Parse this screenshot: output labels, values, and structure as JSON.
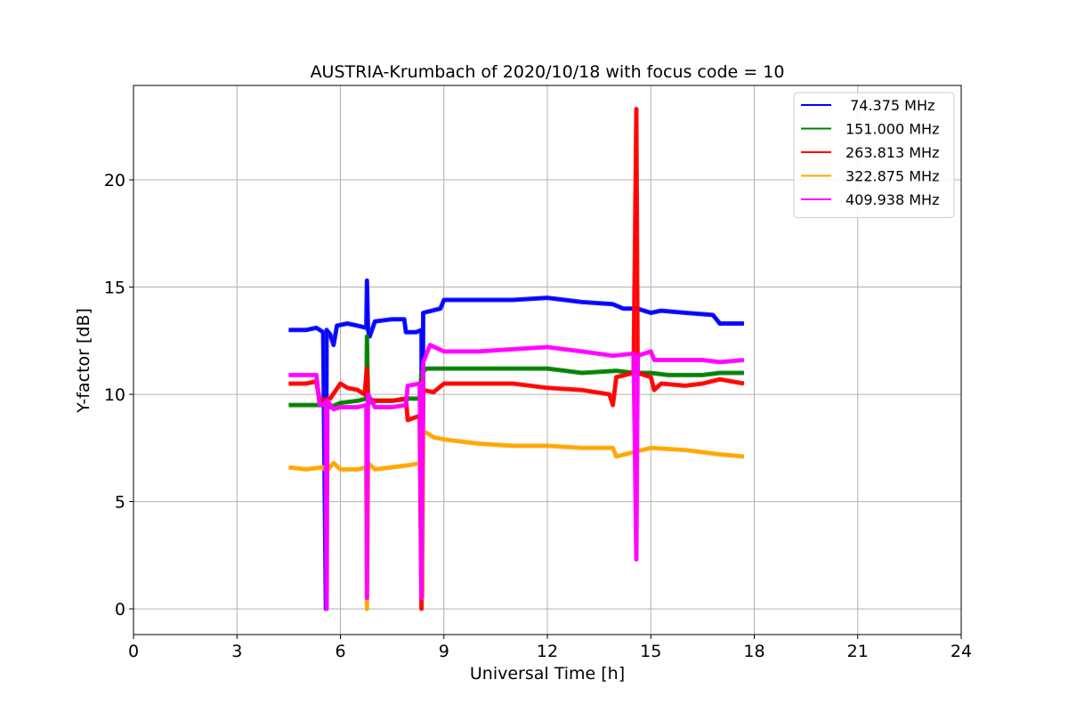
{
  "chart_data": {
    "type": "line",
    "title": "AUSTRIA-Krumbach of 2020/10/18 with focus code = 10",
    "xlabel": "Universal Time [h]",
    "ylabel": "Y-factor [dB]",
    "xlim": [
      0,
      24
    ],
    "ylim": [
      -1.2,
      24.4
    ],
    "xticks": [
      0,
      3,
      6,
      9,
      12,
      15,
      18,
      21,
      24
    ],
    "xtick_labels": [
      "0",
      "3",
      "6",
      "9",
      "12",
      "15",
      "18",
      "21",
      "24"
    ],
    "yticks": [
      0,
      5,
      10,
      15,
      20
    ],
    "ytick_labels": [
      "0",
      "5",
      "10",
      "15",
      "20"
    ],
    "grid": true,
    "legend_position": "top-right",
    "series": [
      {
        "name": " 74.375 MHz",
        "color": "#0000ff",
        "points": [
          [
            4.5,
            13.0
          ],
          [
            5.0,
            13.0
          ],
          [
            5.3,
            13.1
          ],
          [
            5.5,
            12.9
          ],
          [
            5.58,
            0.0
          ],
          [
            5.6,
            13.0
          ],
          [
            5.7,
            12.8
          ],
          [
            5.8,
            12.3
          ],
          [
            5.9,
            13.2
          ],
          [
            6.2,
            13.3
          ],
          [
            6.5,
            13.2
          ],
          [
            6.75,
            13.1
          ],
          [
            6.77,
            15.3
          ],
          [
            6.8,
            13.0
          ],
          [
            6.85,
            12.7
          ],
          [
            7.0,
            13.4
          ],
          [
            7.5,
            13.5
          ],
          [
            7.85,
            13.5
          ],
          [
            7.9,
            12.9
          ],
          [
            8.2,
            12.9
          ],
          [
            8.35,
            13.0
          ],
          [
            8.37,
            0.5
          ],
          [
            8.4,
            13.8
          ],
          [
            8.9,
            14.0
          ],
          [
            9.0,
            14.4
          ],
          [
            10.0,
            14.4
          ],
          [
            11.0,
            14.4
          ],
          [
            12.0,
            14.5
          ],
          [
            13.0,
            14.3
          ],
          [
            13.9,
            14.2
          ],
          [
            14.2,
            14.0
          ],
          [
            14.6,
            14.0
          ],
          [
            15.0,
            13.8
          ],
          [
            15.3,
            13.9
          ],
          [
            16.0,
            13.8
          ],
          [
            16.8,
            13.7
          ],
          [
            17.0,
            13.3
          ],
          [
            17.7,
            13.3
          ]
        ]
      },
      {
        "name": "151.000 MHz",
        "color": "#008000",
        "points": [
          [
            4.5,
            9.5
          ],
          [
            5.0,
            9.5
          ],
          [
            5.5,
            9.5
          ],
          [
            5.7,
            9.4
          ],
          [
            6.0,
            9.6
          ],
          [
            6.5,
            9.7
          ],
          [
            6.75,
            9.8
          ],
          [
            6.77,
            12.7
          ],
          [
            6.8,
            9.6
          ],
          [
            7.0,
            9.7
          ],
          [
            7.5,
            9.7
          ],
          [
            8.0,
            9.8
          ],
          [
            8.3,
            9.8
          ],
          [
            8.35,
            11.0
          ],
          [
            8.5,
            11.2
          ],
          [
            9.0,
            11.2
          ],
          [
            10.0,
            11.2
          ],
          [
            11.0,
            11.2
          ],
          [
            12.0,
            11.2
          ],
          [
            13.0,
            11.0
          ],
          [
            14.0,
            11.1
          ],
          [
            14.5,
            11.0
          ],
          [
            15.0,
            11.0
          ],
          [
            15.5,
            10.9
          ],
          [
            16.0,
            10.9
          ],
          [
            16.5,
            10.9
          ],
          [
            17.0,
            11.0
          ],
          [
            17.7,
            11.0
          ]
        ]
      },
      {
        "name": "263.813 MHz",
        "color": "#ff0000",
        "points": [
          [
            4.5,
            10.5
          ],
          [
            5.0,
            10.5
          ],
          [
            5.3,
            10.6
          ],
          [
            5.4,
            9.7
          ],
          [
            5.7,
            9.8
          ],
          [
            6.0,
            10.5
          ],
          [
            6.2,
            10.3
          ],
          [
            6.5,
            10.2
          ],
          [
            6.7,
            10.0
          ],
          [
            6.77,
            11.2
          ],
          [
            6.8,
            9.8
          ],
          [
            7.0,
            9.7
          ],
          [
            7.5,
            9.7
          ],
          [
            7.9,
            9.8
          ],
          [
            7.95,
            8.8
          ],
          [
            8.3,
            9.0
          ],
          [
            8.35,
            0.0
          ],
          [
            8.4,
            10.2
          ],
          [
            8.7,
            10.1
          ],
          [
            9.0,
            10.5
          ],
          [
            10.0,
            10.5
          ],
          [
            11.0,
            10.5
          ],
          [
            12.0,
            10.3
          ],
          [
            13.0,
            10.2
          ],
          [
            13.8,
            10.0
          ],
          [
            13.9,
            9.5
          ],
          [
            14.0,
            10.8
          ],
          [
            14.5,
            11.0
          ],
          [
            14.58,
            23.3
          ],
          [
            14.62,
            11.0
          ],
          [
            15.0,
            10.8
          ],
          [
            15.1,
            10.2
          ],
          [
            15.3,
            10.5
          ],
          [
            16.0,
            10.4
          ],
          [
            16.5,
            10.5
          ],
          [
            17.0,
            10.7
          ],
          [
            17.7,
            10.5
          ]
        ]
      },
      {
        "name": "322.875 MHz",
        "color": "#ffa500",
        "points": [
          [
            4.5,
            6.6
          ],
          [
            5.0,
            6.5
          ],
          [
            5.5,
            6.6
          ],
          [
            5.6,
            6.4
          ],
          [
            5.8,
            6.8
          ],
          [
            6.0,
            6.5
          ],
          [
            6.5,
            6.5
          ],
          [
            6.75,
            6.6
          ],
          [
            6.77,
            0.0
          ],
          [
            6.8,
            6.8
          ],
          [
            7.0,
            6.5
          ],
          [
            7.5,
            6.6
          ],
          [
            8.0,
            6.7
          ],
          [
            8.35,
            6.8
          ],
          [
            8.37,
            0.5
          ],
          [
            8.4,
            8.3
          ],
          [
            8.7,
            8.0
          ],
          [
            9.0,
            7.9
          ],
          [
            10.0,
            7.7
          ],
          [
            11.0,
            7.6
          ],
          [
            12.0,
            7.6
          ],
          [
            13.0,
            7.5
          ],
          [
            13.9,
            7.5
          ],
          [
            14.0,
            7.1
          ],
          [
            14.5,
            7.3
          ],
          [
            15.0,
            7.5
          ],
          [
            16.0,
            7.4
          ],
          [
            17.0,
            7.2
          ],
          [
            17.7,
            7.1
          ]
        ]
      },
      {
        "name": "409.938 MHz",
        "color": "#ff00ff",
        "points": [
          [
            4.5,
            10.9
          ],
          [
            5.0,
            10.9
          ],
          [
            5.3,
            10.9
          ],
          [
            5.4,
            9.5
          ],
          [
            5.57,
            9.6
          ],
          [
            5.6,
            0.0
          ],
          [
            5.62,
            9.7
          ],
          [
            5.8,
            9.3
          ],
          [
            6.0,
            9.4
          ],
          [
            6.5,
            9.4
          ],
          [
            6.75,
            9.5
          ],
          [
            6.77,
            0.5
          ],
          [
            6.8,
            10.0
          ],
          [
            7.0,
            9.4
          ],
          [
            7.5,
            9.4
          ],
          [
            7.9,
            9.5
          ],
          [
            7.95,
            10.4
          ],
          [
            8.3,
            10.5
          ],
          [
            8.35,
            0.5
          ],
          [
            8.4,
            11.5
          ],
          [
            8.6,
            12.3
          ],
          [
            9.0,
            12.0
          ],
          [
            10.0,
            12.0
          ],
          [
            11.0,
            12.1
          ],
          [
            12.0,
            12.2
          ],
          [
            13.0,
            12.0
          ],
          [
            13.9,
            11.8
          ],
          [
            14.5,
            11.9
          ],
          [
            14.58,
            2.3
          ],
          [
            14.62,
            11.8
          ],
          [
            15.0,
            12.0
          ],
          [
            15.1,
            11.6
          ],
          [
            16.0,
            11.6
          ],
          [
            16.5,
            11.6
          ],
          [
            17.0,
            11.5
          ],
          [
            17.7,
            11.6
          ]
        ]
      }
    ]
  }
}
